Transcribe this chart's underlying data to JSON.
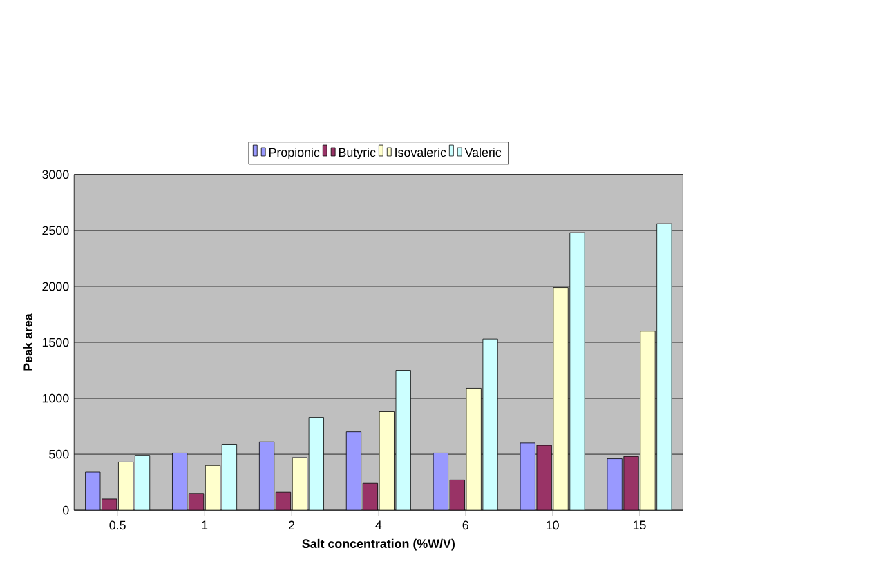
{
  "chart_data": {
    "type": "bar",
    "xlabel": "Salt concentration (%W/V)",
    "ylabel": "Peak area",
    "categories": [
      "0.5",
      "1",
      "2",
      "4",
      "6",
      "10",
      "15"
    ],
    "series": [
      {
        "name": "Propionic",
        "color": "#9999ff",
        "values": [
          340,
          510,
          610,
          700,
          510,
          600,
          460
        ]
      },
      {
        "name": "Butyric",
        "color": "#993366",
        "values": [
          100,
          150,
          160,
          240,
          270,
          580,
          480
        ]
      },
      {
        "name": "Isovaleric",
        "color": "#ffffcc",
        "values": [
          430,
          400,
          470,
          880,
          1090,
          1990,
          1600
        ]
      },
      {
        "name": "Valeric",
        "color": "#ccffff",
        "values": [
          490,
          590,
          830,
          1250,
          1530,
          2480,
          2560
        ]
      }
    ],
    "ylim": [
      0,
      3000
    ],
    "yticks": [
      0,
      500,
      1000,
      1500,
      2000,
      2500,
      3000
    ],
    "grid": "y",
    "legend": "top"
  }
}
